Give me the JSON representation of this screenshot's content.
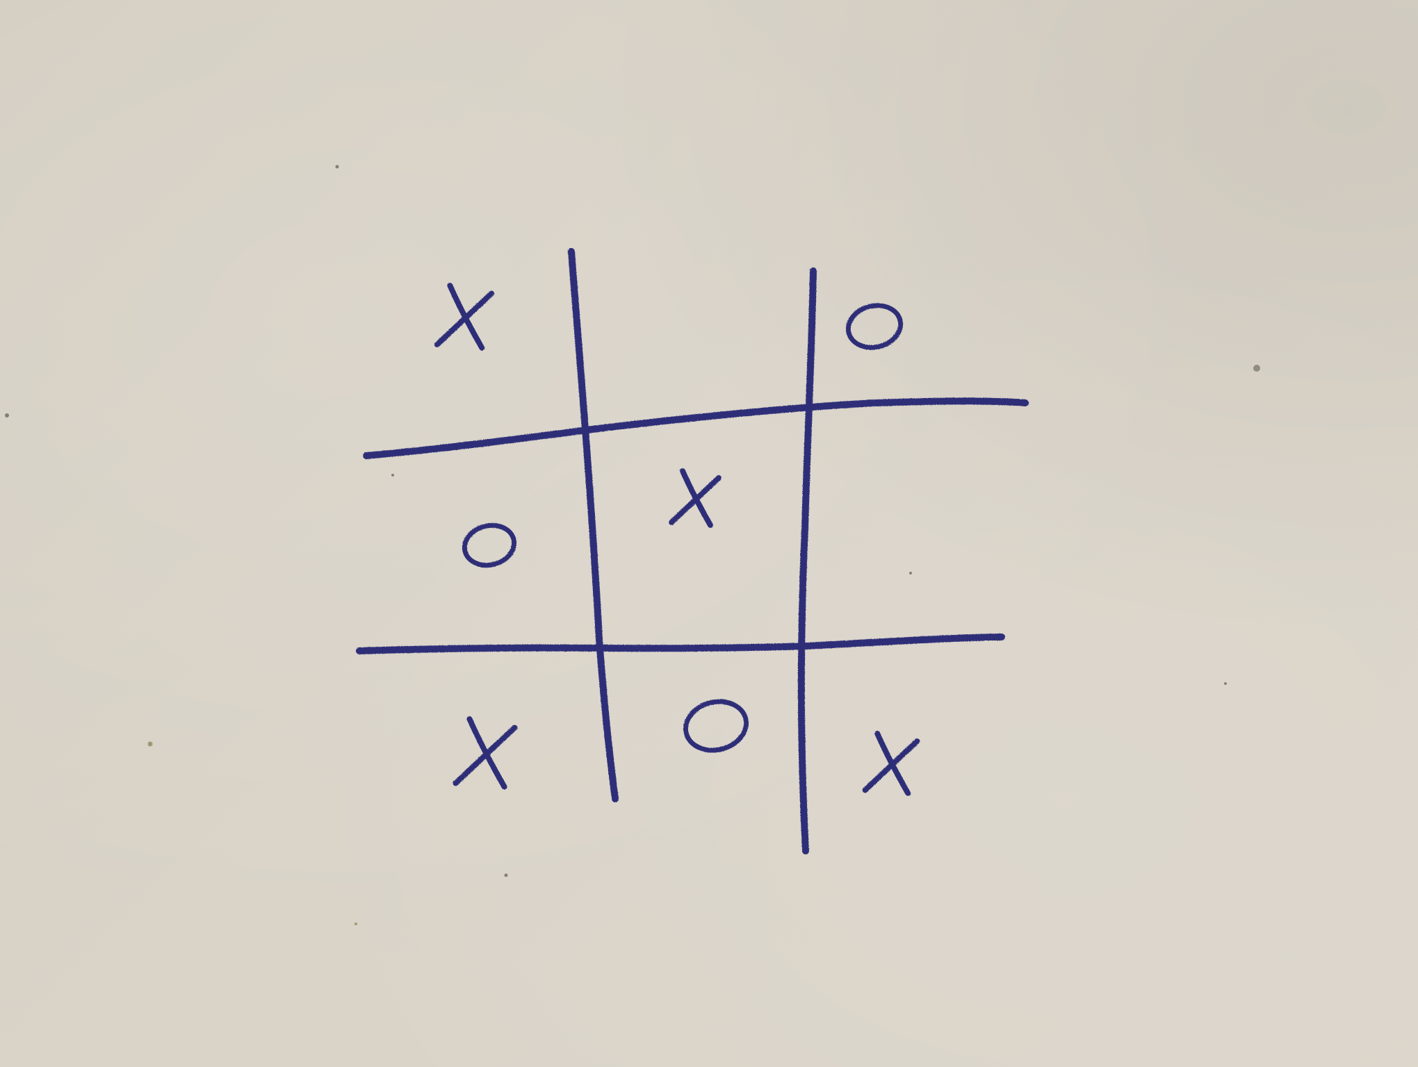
{
  "game": {
    "board": [
      [
        "X",
        "",
        "O"
      ],
      [
        "O",
        "X",
        ""
      ],
      [
        "X",
        "O",
        "X"
      ]
    ]
  },
  "colors": {
    "ink": "#2e2f78",
    "paper": "#d7d1c5"
  }
}
